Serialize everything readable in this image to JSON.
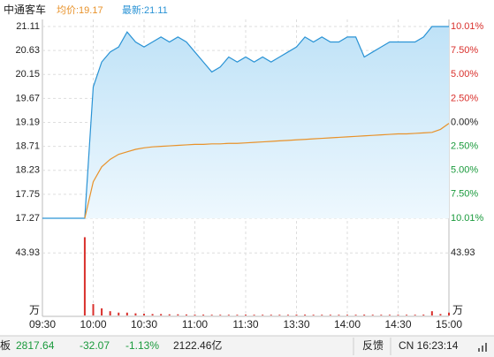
{
  "header": {
    "name": "中通客车",
    "avg_label": "均价:19.17",
    "last_label": "最新:21.11"
  },
  "chart_data": [
    {
      "type": "line",
      "x": [
        0,
        5,
        10,
        15,
        20,
        25,
        30,
        35,
        40,
        45,
        50,
        55,
        60,
        65,
        70,
        75,
        80,
        85,
        90,
        95,
        100,
        105,
        110,
        115,
        120,
        125,
        130,
        135,
        140,
        145,
        150,
        155,
        160,
        165,
        170,
        175,
        180,
        185,
        190,
        195,
        200,
        205,
        210,
        215,
        220,
        225,
        230,
        235,
        240
      ],
      "xlim": [
        0,
        240
      ],
      "xticks": [
        {
          "value": 0,
          "label": "09:30"
        },
        {
          "value": 30,
          "label": "10:00"
        },
        {
          "value": 60,
          "label": "10:30"
        },
        {
          "value": 90,
          "label": "11:00"
        },
        {
          "value": 120,
          "label": "11:30"
        },
        {
          "value": 150,
          "label": "13:30"
        },
        {
          "value": 180,
          "label": "14:00"
        },
        {
          "value": 210,
          "label": "14:30"
        },
        {
          "value": 240,
          "label": "15:00"
        }
      ],
      "ylim": [
        17.27,
        21.11
      ],
      "yticks": [
        21.11,
        20.63,
        20.15,
        19.67,
        19.19,
        18.71,
        18.23,
        17.75,
        17.27
      ],
      "y2lim": [
        -10.01,
        10.01
      ],
      "y2ticks": [
        {
          "value": 10.01,
          "label": "10.01%"
        },
        {
          "value": 7.5,
          "label": "7.50%"
        },
        {
          "value": 5,
          "label": "5.00%"
        },
        {
          "value": 2.5,
          "label": "2.50%"
        },
        {
          "value": 0,
          "label": "0.00%"
        },
        {
          "value": -2.5,
          "label": "2.50%"
        },
        {
          "value": -5,
          "label": "5.00%"
        },
        {
          "value": -7.5,
          "label": "7.50%"
        },
        {
          "value": -10.01,
          "label": "10.01%"
        }
      ],
      "grid": true,
      "series": [
        {
          "color": "#2a93d5",
          "values": [
            17.27,
            17.27,
            17.27,
            17.27,
            17.27,
            17.27,
            19.9,
            20.4,
            20.6,
            20.7,
            21.0,
            20.8,
            20.7,
            20.8,
            20.9,
            20.8,
            20.9,
            20.8,
            20.6,
            20.4,
            20.2,
            20.3,
            20.5,
            20.4,
            20.5,
            20.4,
            20.5,
            20.4,
            20.5,
            20.6,
            20.7,
            20.9,
            20.8,
            20.9,
            20.8,
            20.8,
            20.9,
            20.9,
            20.5,
            20.6,
            20.7,
            20.8,
            20.8,
            20.8,
            20.8,
            20.9,
            21.11,
            21.11,
            21.11
          ]
        },
        {
          "color": "#e8922a",
          "values": [
            null,
            null,
            null,
            null,
            null,
            17.27,
            18.0,
            18.3,
            18.45,
            18.55,
            18.6,
            18.65,
            18.68,
            18.7,
            18.71,
            18.72,
            18.73,
            18.74,
            18.75,
            18.75,
            18.76,
            18.76,
            18.77,
            18.77,
            18.78,
            18.79,
            18.8,
            18.81,
            18.82,
            18.83,
            18.84,
            18.85,
            18.86,
            18.87,
            18.88,
            18.89,
            18.9,
            18.91,
            18.92,
            18.93,
            18.94,
            18.95,
            18.96,
            18.96,
            18.97,
            18.98,
            18.99,
            19.05,
            19.17
          ]
        }
      ]
    },
    {
      "type": "bar",
      "x": [
        0,
        5,
        10,
        15,
        20,
        25,
        30,
        35,
        40,
        45,
        50,
        55,
        60,
        65,
        70,
        75,
        80,
        85,
        90,
        95,
        100,
        105,
        110,
        115,
        120,
        125,
        130,
        135,
        140,
        145,
        150,
        155,
        160,
        165,
        170,
        175,
        180,
        185,
        190,
        195,
        200,
        205,
        210,
        215,
        220,
        225,
        230,
        235,
        240
      ],
      "xlim": [
        0,
        240
      ],
      "ylim": [
        0,
        59
      ],
      "yticks": [
        43.93
      ],
      "unit": "万",
      "color": "#d9302c",
      "values": [
        0,
        0,
        0,
        0,
        0,
        55,
        8,
        5,
        3,
        2,
        2,
        1.5,
        1.2,
        1,
        1,
        0.8,
        0.8,
        0.7,
        0.6,
        0.6,
        0.5,
        0.5,
        0.5,
        0.5,
        0.6,
        0.5,
        0.5,
        0.5,
        0.5,
        0.5,
        0.6,
        0.6,
        0.5,
        0.5,
        0.5,
        0.5,
        0.5,
        0.5,
        0.6,
        0.5,
        0.5,
        0.5,
        0.5,
        0.5,
        0.5,
        0.6,
        3,
        1,
        2
      ]
    }
  ],
  "status_bar": {
    "left": "板",
    "index": "2817.64",
    "change": "-32.07",
    "pct": "-1.13%",
    "turnover": "2122.46亿",
    "feedback": "反馈",
    "clock": "CN 16:23:14"
  }
}
